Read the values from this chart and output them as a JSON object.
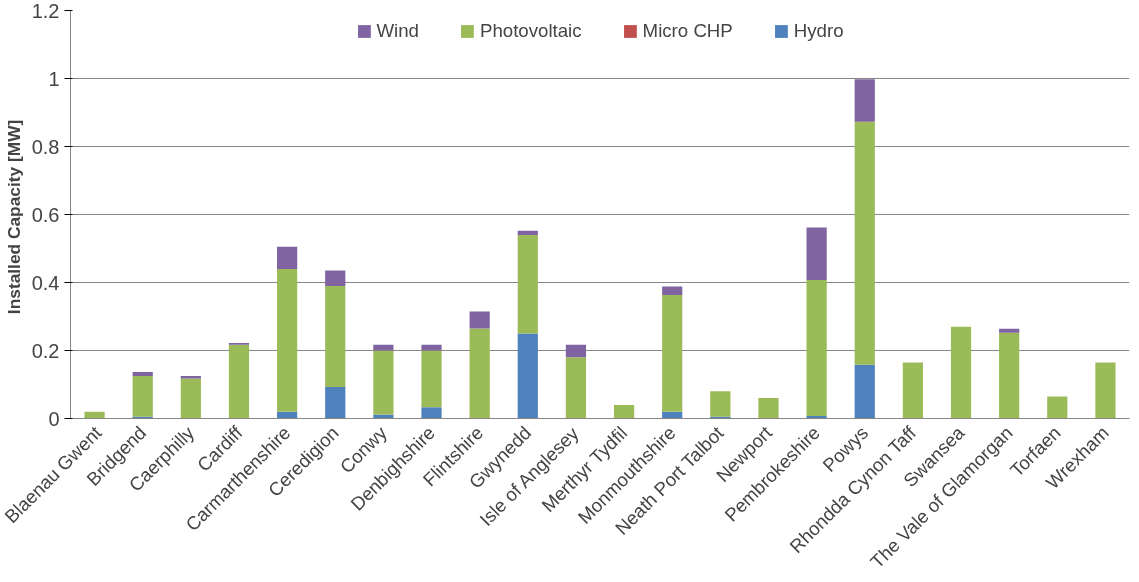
{
  "chart_data": {
    "type": "bar",
    "stacked": true,
    "ylabel": "Installed Capacity  [MW]",
    "categories": [
      "Blaenau Gwent",
      "Bridgend",
      "Caerphilly",
      "Cardiff",
      "Carmarthenshire",
      "Ceredigion",
      "Conwy",
      "Denbighshire",
      "Flintshire",
      "Gwynedd",
      "Isle of Anglesey",
      "Merthyr Tydfil",
      "Monmouthshire",
      "Neath Port Talbot",
      "Newport",
      "Pembrokeshire",
      "Powys",
      "Rhondda Cynon Taff",
      "Swansea",
      "The Vale of Glamorgan",
      "Torfaen",
      "Wrexham"
    ],
    "series": [
      {
        "name": "Hydro",
        "color": "#4f81bd",
        "values": [
          0,
          0.005,
          0,
          0,
          0.02,
          0.093,
          0.012,
          0.033,
          0,
          0.25,
          0,
          0,
          0.02,
          0.005,
          0,
          0.007,
          0.158,
          0,
          0,
          0,
          0,
          0
        ]
      },
      {
        "name": "Micro CHP",
        "color": "#c0504d",
        "values": [
          0,
          0,
          0,
          0,
          0,
          0,
          0,
          0,
          0,
          0,
          0,
          0,
          0,
          0,
          0,
          0,
          0,
          0,
          0,
          0,
          0,
          0
        ]
      },
      {
        "name": "Photovoltaic",
        "color": "#9bbb59",
        "values": [
          0.02,
          0.12,
          0.118,
          0.217,
          0.42,
          0.297,
          0.188,
          0.167,
          0.265,
          0.29,
          0.18,
          0.04,
          0.343,
          0.075,
          0.06,
          0.4,
          0.715,
          0.165,
          0.27,
          0.252,
          0.065,
          0.165
        ]
      },
      {
        "name": "Wind",
        "color": "#8064a2",
        "values": [
          0,
          0.012,
          0.007,
          0.005,
          0.065,
          0.045,
          0.017,
          0.017,
          0.05,
          0.012,
          0.037,
          0,
          0.025,
          0,
          0,
          0.155,
          0.125,
          0,
          0,
          0.012,
          0,
          0
        ]
      }
    ],
    "ylim": [
      0,
      1.2
    ],
    "yticks": [
      0,
      0.2,
      0.4,
      0.6,
      0.8,
      1,
      1.2
    ],
    "grid": "y",
    "legend": "top"
  }
}
